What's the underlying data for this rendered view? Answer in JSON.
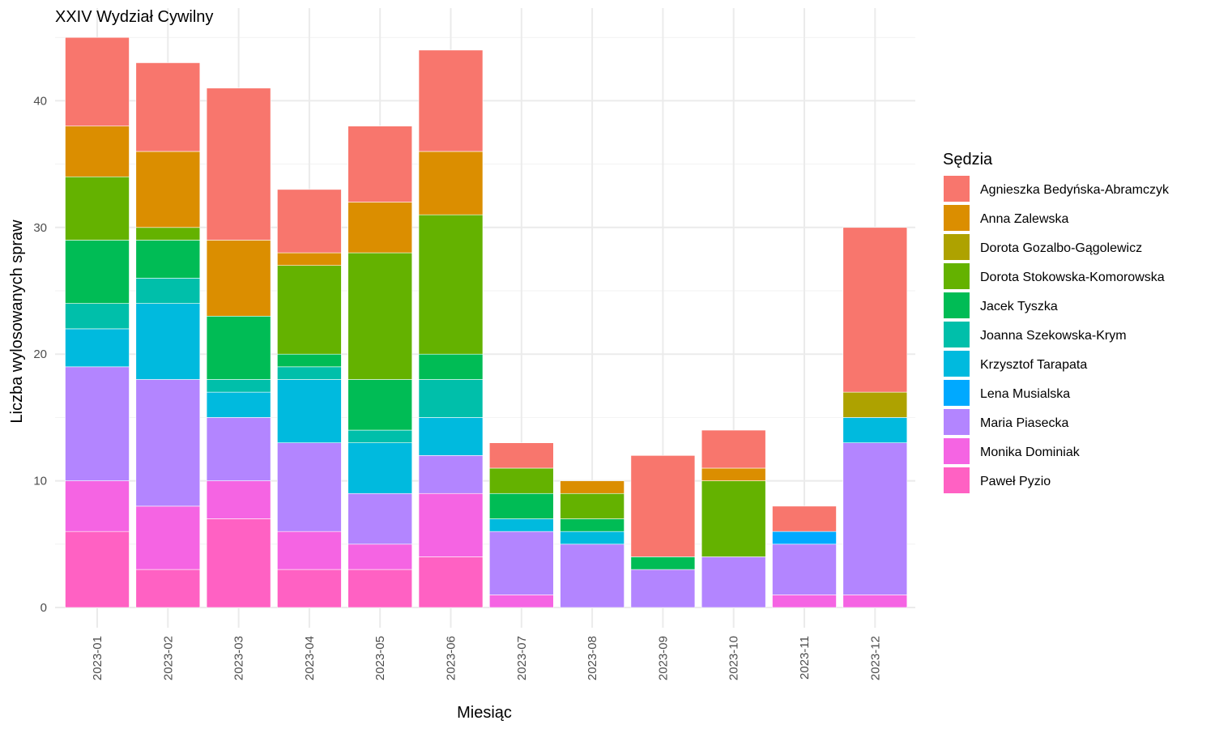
{
  "chart_data": {
    "type": "bar",
    "stacked": true,
    "title": "XXIV Wydział Cywilny",
    "xlabel": "Miesiąc",
    "ylabel": "Liczba wylosowanych spraw",
    "ylim": [
      0,
      45
    ],
    "y_ticks": [
      0,
      10,
      20,
      30,
      40
    ],
    "grid": true,
    "legend_title": "Sędzia",
    "legend_position": "right",
    "categories": [
      "2023-01",
      "2023-02",
      "2023-03",
      "2023-04",
      "2023-05",
      "2023-06",
      "2023-07",
      "2023-08",
      "2023-09",
      "2023-10",
      "2023-11",
      "2023-12"
    ],
    "series": [
      {
        "name": "Paweł Pyzio",
        "color": "#FF61C3",
        "values": [
          6,
          3,
          7,
          3,
          3,
          4,
          0,
          0,
          0,
          0,
          0,
          0
        ]
      },
      {
        "name": "Monika Dominiak",
        "color": "#F564E3",
        "values": [
          4,
          5,
          3,
          3,
          2,
          5,
          1,
          0,
          0,
          0,
          1,
          1
        ]
      },
      {
        "name": "Maria Piasecka",
        "color": "#B385FF",
        "values": [
          9,
          10,
          5,
          7,
          4,
          3,
          5,
          5,
          3,
          4,
          4,
          12
        ]
      },
      {
        "name": "Lena Musialska",
        "color": "#00A9FF",
        "values": [
          0,
          0,
          0,
          0,
          0,
          0,
          0,
          0,
          0,
          0,
          1,
          0
        ]
      },
      {
        "name": "Krzysztof Tarapata",
        "color": "#00BADE",
        "values": [
          3,
          6,
          2,
          5,
          4,
          3,
          1,
          1,
          0,
          0,
          0,
          2
        ]
      },
      {
        "name": "Joanna Szekowska-Krym",
        "color": "#00BFAA",
        "values": [
          2,
          2,
          1,
          1,
          1,
          3,
          0,
          0,
          0,
          0,
          0,
          0
        ]
      },
      {
        "name": "Jacek Tyszka",
        "color": "#00BC55",
        "values": [
          5,
          3,
          5,
          1,
          4,
          2,
          2,
          1,
          1,
          0,
          0,
          0
        ]
      },
      {
        "name": "Dorota Stokowska-Komorowska",
        "color": "#64B200",
        "values": [
          5,
          1,
          0,
          7,
          10,
          11,
          2,
          2,
          0,
          6,
          0,
          0
        ]
      },
      {
        "name": "Dorota Gozalbo-Gągolewicz",
        "color": "#AEA200",
        "values": [
          0,
          0,
          0,
          0,
          0,
          0,
          0,
          0,
          0,
          0,
          0,
          2
        ]
      },
      {
        "name": "Anna Zalewska",
        "color": "#DB8E00",
        "values": [
          4,
          6,
          6,
          1,
          4,
          5,
          0,
          1,
          0,
          1,
          0,
          0
        ]
      },
      {
        "name": "Agnieszka Bedyńska-Abramczyk",
        "color": "#F8766D",
        "values": [
          7,
          7,
          12,
          5,
          6,
          8,
          2,
          0,
          8,
          3,
          2,
          13
        ]
      }
    ],
    "legend_order": [
      "Agnieszka Bedyńska-Abramczyk",
      "Anna Zalewska",
      "Dorota Gozalbo-Gągolewicz",
      "Dorota Stokowska-Komorowska",
      "Jacek Tyszka",
      "Joanna Szekowska-Krym",
      "Krzysztof Tarapata",
      "Lena Musialska",
      "Maria Piasecka",
      "Monika Dominiak",
      "Paweł Pyzio"
    ]
  }
}
